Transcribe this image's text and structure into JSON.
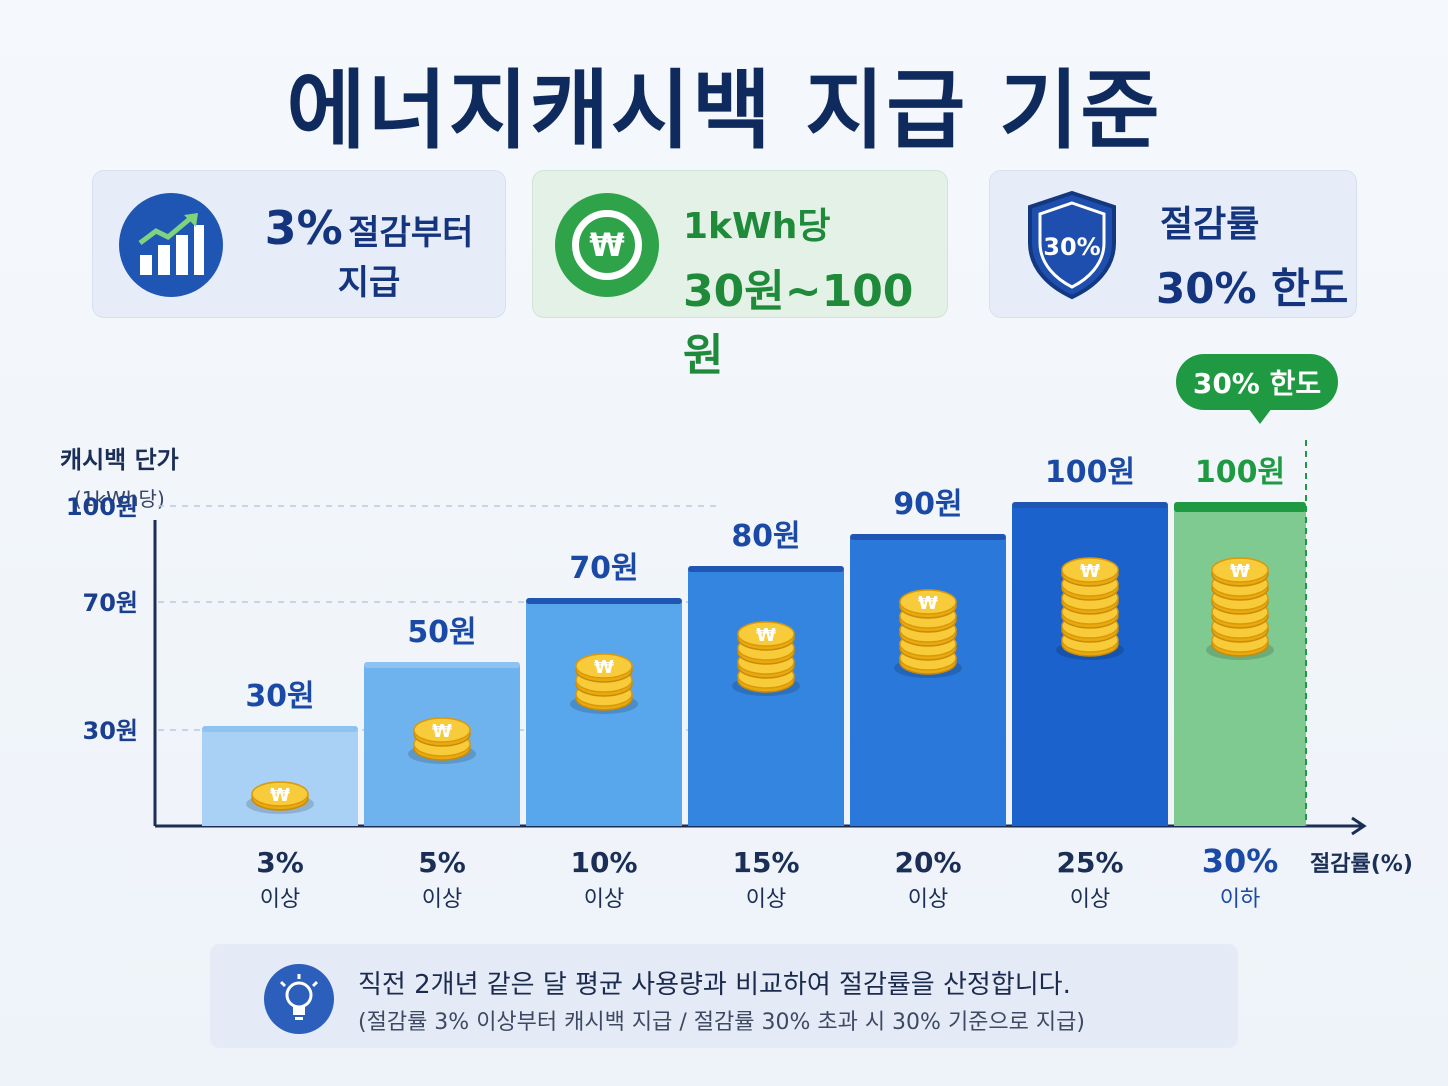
{
  "title": "에너지캐시백 지급 기준",
  "cards": [
    {
      "big": "3%",
      "mid": "절감부터",
      "line2": "지급",
      "icon": "growth-chart-icon"
    },
    {
      "l1": "1kWh당",
      "l2": "30원~100원",
      "icon": "won-coin-icon",
      "glyph": "₩"
    },
    {
      "l1": "절감률",
      "l2": "30% 한도",
      "icon": "shield-icon",
      "shield_text": "30%"
    }
  ],
  "limit_bubble": "30% 한도",
  "y_axis": {
    "label": "캐시백 단가",
    "sublabel": "(1kWh당)"
  },
  "x_axis_unit": "절감률(%)",
  "note": {
    "line1": "직전 2개년 같은 달 평균 사용량과 비교하여 절감률을 산정합니다.",
    "line2": "(절감률 3% 이상부터 캐시백 지급 / 절감률 30% 초과 시 30% 기준으로 지급)"
  },
  "chart_data": {
    "type": "bar",
    "categories": [
      "3%|이상",
      "5%|이상",
      "10%|이상",
      "15%|이상",
      "20%|이상",
      "25%|이상",
      "30%|이하"
    ],
    "category_main": [
      "3%",
      "5%",
      "10%",
      "15%",
      "20%",
      "25%",
      "30%"
    ],
    "category_sub": [
      "이상",
      "이상",
      "이상",
      "이상",
      "이상",
      "이상",
      "이하"
    ],
    "values": [
      30,
      50,
      70,
      80,
      90,
      100,
      100
    ],
    "value_labels": [
      "30원",
      "50원",
      "70원",
      "80원",
      "90원",
      "100원",
      "100원"
    ],
    "y_ticks": [
      30,
      70,
      100
    ],
    "y_tick_labels": [
      "30원",
      "70원",
      "100원"
    ],
    "colors": [
      "#a8d1f5",
      "#6fb3ee",
      "#58a6ec",
      "#3385e0",
      "#2a78da",
      "#1b62cc",
      "#7fca91"
    ],
    "highlight_color": "#1f9a43",
    "value_label_color": "#1b4aa6",
    "ylabel": "캐시백 단가",
    "xlabel": "절감률(%)"
  }
}
